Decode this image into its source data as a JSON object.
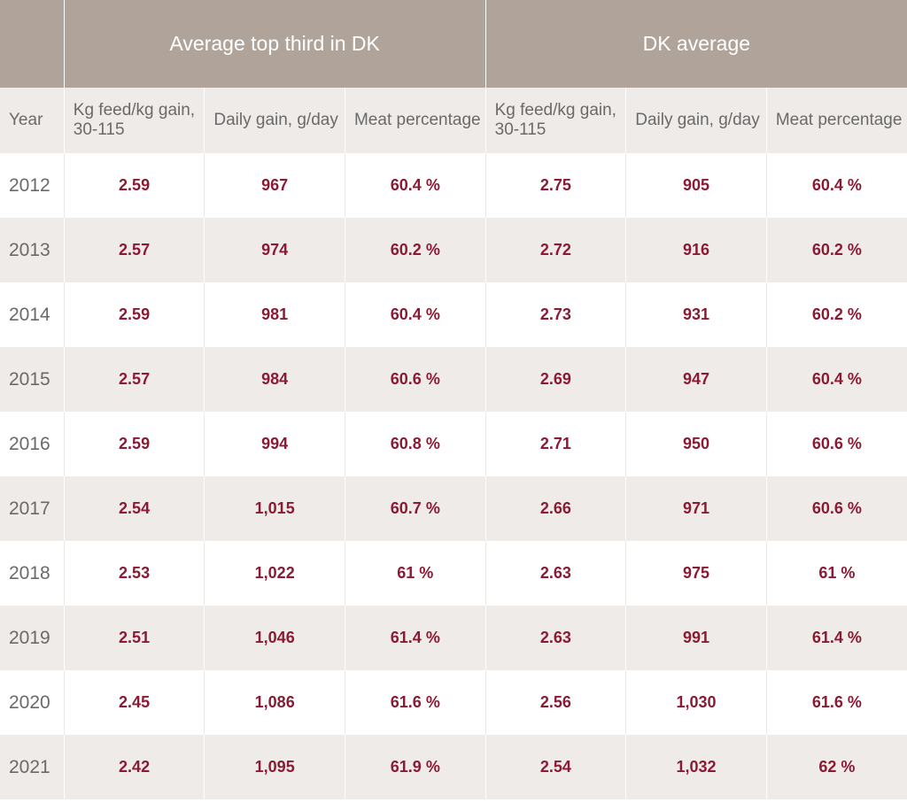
{
  "groups": [
    "Average top third in DK",
    "DK average"
  ],
  "columns": {
    "year": "Year",
    "feed": "Kg feed/kg gain, 30-115",
    "gain": "Daily gain, g/day",
    "meat": "Meat percentage"
  },
  "rows": [
    {
      "year": "2012",
      "top_feed": "2.59",
      "top_gain": "967",
      "top_meat": "60.4 %",
      "avg_feed": "2.75",
      "avg_gain": "905",
      "avg_meat": "60.4 %"
    },
    {
      "year": "2013",
      "top_feed": "2.57",
      "top_gain": "974",
      "top_meat": "60.2 %",
      "avg_feed": "2.72",
      "avg_gain": "916",
      "avg_meat": "60.2 %"
    },
    {
      "year": "2014",
      "top_feed": "2.59",
      "top_gain": "981",
      "top_meat": "60.4 %",
      "avg_feed": "2.73",
      "avg_gain": "931",
      "avg_meat": "60.2 %"
    },
    {
      "year": "2015",
      "top_feed": "2.57",
      "top_gain": "984",
      "top_meat": "60.6 %",
      "avg_feed": "2.69",
      "avg_gain": "947",
      "avg_meat": "60.4 %"
    },
    {
      "year": "2016",
      "top_feed": "2.59",
      "top_gain": "994",
      "top_meat": "60.8 %",
      "avg_feed": "2.71",
      "avg_gain": "950",
      "avg_meat": "60.6 %"
    },
    {
      "year": "2017",
      "top_feed": "2.54",
      "top_gain": "1,015",
      "top_meat": "60.7 %",
      "avg_feed": "2.66",
      "avg_gain": "971",
      "avg_meat": "60.6 %"
    },
    {
      "year": "2018",
      "top_feed": "2.53",
      "top_gain": "1,022",
      "top_meat": "61 %",
      "avg_feed": "2.63",
      "avg_gain": "975",
      "avg_meat": "61 %"
    },
    {
      "year": "2019",
      "top_feed": "2.51",
      "top_gain": "1,046",
      "top_meat": "61.4 %",
      "avg_feed": "2.63",
      "avg_gain": "991",
      "avg_meat": "61.4 %"
    },
    {
      "year": "2020",
      "top_feed": "2.45",
      "top_gain": "1,086",
      "top_meat": "61.6 %",
      "avg_feed": "2.56",
      "avg_gain": "1,030",
      "avg_meat": "61.6 %"
    },
    {
      "year": "2021",
      "top_feed": "2.42",
      "top_gain": "1,095",
      "top_meat": "61.9 %",
      "avg_feed": "2.54",
      "avg_gain": "1,032",
      "avg_meat": "62 %"
    }
  ]
}
